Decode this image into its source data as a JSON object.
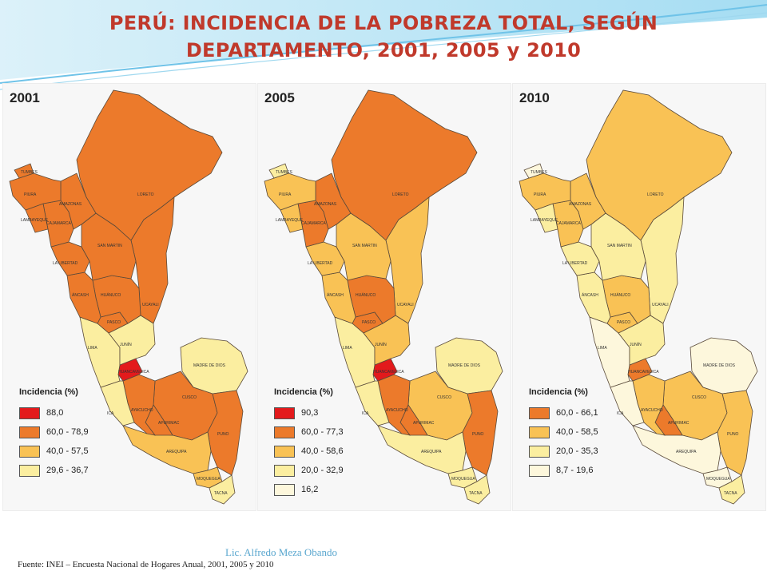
{
  "title": {
    "line1": "PERÚ: INCIDENCIA DE LA POBREZA TOTAL, SEGÚN",
    "line2": "DEPARTAMENTO, 2001, 2005 y 2010"
  },
  "legend_title": "Incidencia (%)",
  "region_labels": {
    "tumbes": "TUMBES",
    "piura": "PIURA",
    "lambayeque": "LAMBAYEQUE",
    "amazonas": "AMAZONAS",
    "cajamarca": "CAJAMARCA",
    "loreto": "LORETO",
    "san_martin": "SAN MARTIN",
    "la_libertad": "LA LIBERTAD",
    "ancash": "ÁNCASH",
    "huanuco": "HUÁNUCO",
    "ucayali": "UCAYALI",
    "pasco": "PASCO",
    "lima": "LIMA",
    "junin": "JUNÍN",
    "madre_de_dios": "MADRE DE DIOS",
    "huancavelica": "HUANCAVELICA",
    "ica": "ICA",
    "ayacucho": "AYACUCHO",
    "apurimac": "APURIMAC",
    "cusco": "CUSCO",
    "puno": "PUNO",
    "arequipa": "AREQUIPA",
    "moquegua": "MOQUEGUA",
    "tacna": "TACNA"
  },
  "maps": [
    {
      "year": "2001",
      "legend": [
        {
          "label": "88,0",
          "color": "#e31a1c"
        },
        {
          "label": "60,0 - 78,9",
          "color": "#ec7a2b"
        },
        {
          "label": "40,0 - 57,5",
          "color": "#f9c255"
        },
        {
          "label": "29,6 - 36,7",
          "color": "#fbeea0"
        }
      ]
    },
    {
      "year": "2005",
      "legend": [
        {
          "label": "90,3",
          "color": "#e31a1c"
        },
        {
          "label": "60,0 - 77,3",
          "color": "#ec7a2b"
        },
        {
          "label": "40,0 - 58,6",
          "color": "#f9c255"
        },
        {
          "label": "20,0 - 32,9",
          "color": "#fbeea0"
        },
        {
          "label": "16,2",
          "color": "#fdf7dc"
        }
      ]
    },
    {
      "year": "2010",
      "legend": [
        {
          "label": "60,0 - 66,1",
          "color": "#ec7a2b"
        },
        {
          "label": "40,0 - 58,5",
          "color": "#f9c255"
        },
        {
          "label": "20,0 - 35,3",
          "color": "#fbeea0"
        },
        {
          "label": "8,7 - 19,6",
          "color": "#fdf7dc"
        }
      ]
    }
  ],
  "footer": {
    "author": "Lic. Alfredo Meza Obando",
    "source": "Fuente: INEI – Encuesta Nacional de Hogares Anual, 2001, 2005 y 2010"
  }
}
